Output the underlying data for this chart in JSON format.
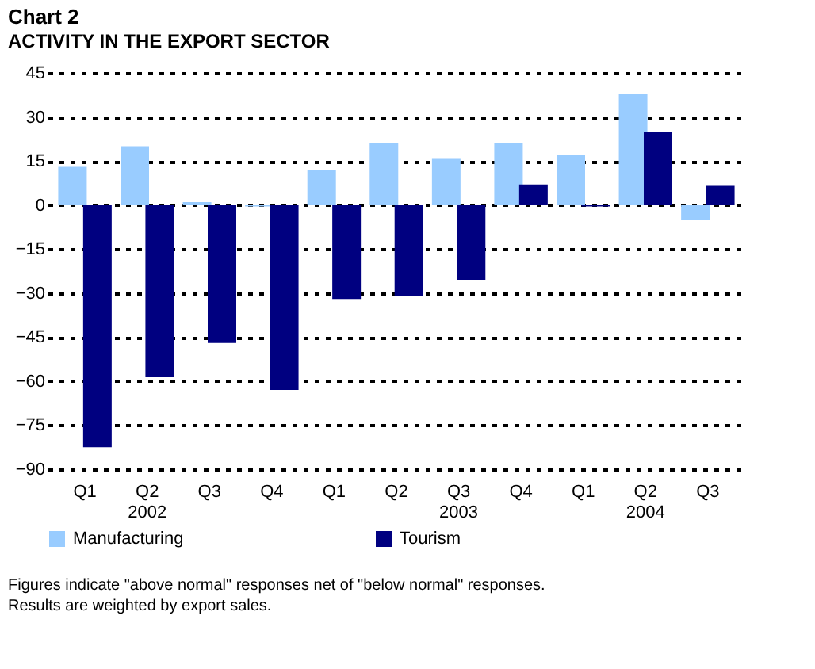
{
  "chart_data": {
    "type": "bar",
    "title": "Chart 2",
    "subtitle": "ACTIVITY IN THE EXPORT SECTOR",
    "categories": [
      "Q1",
      "Q2\n2002",
      "Q3",
      "Q4",
      "Q1",
      "Q2",
      "Q3\n2003",
      "Q4",
      "Q1",
      "Q2\n2004",
      "Q3"
    ],
    "series": [
      {
        "name": "Manufacturing",
        "color": "#99ccff",
        "values": [
          13,
          20,
          1,
          -0.5,
          12,
          21,
          16,
          21,
          17,
          38,
          -5
        ]
      },
      {
        "name": "Tourism",
        "color": "#000080",
        "values": [
          -82.5,
          -58.5,
          -47,
          -63,
          -32,
          -31,
          -25.5,
          7,
          -0.5,
          25,
          6.5
        ]
      }
    ],
    "ylim": [
      -90,
      45
    ],
    "yticks": [
      -90,
      -75,
      -60,
      -45,
      -30,
      -15,
      0,
      15,
      30,
      45
    ],
    "grid": "y",
    "legend": "bottom",
    "annotations": [
      "Figures indicate \"above normal\" responses net of \"below normal\" responses.",
      "Results are weighted by export sales."
    ]
  }
}
